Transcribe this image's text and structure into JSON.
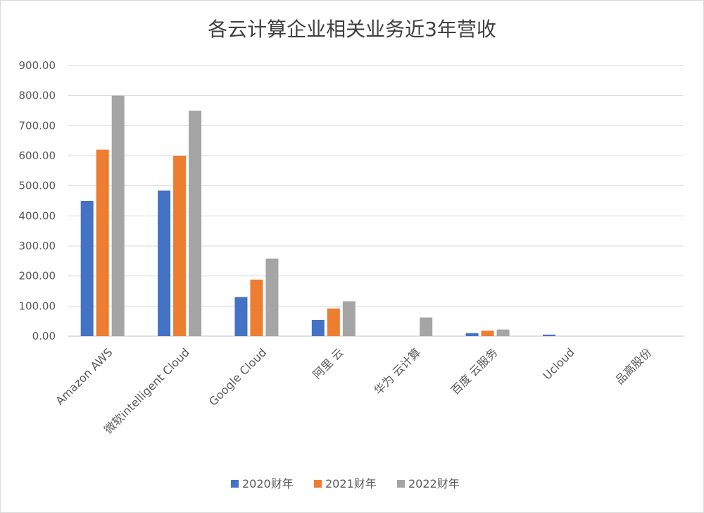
{
  "chart_data": {
    "type": "bar",
    "title": "各云计算企业相关业务近3年营收",
    "xlabel": "",
    "ylabel": "",
    "categories": [
      "Amazon AWS",
      "微软intelligent Cloud",
      "Google Cloud",
      "阿里 云",
      "华为 云计算",
      "百度 云服务",
      "Ucloud",
      "品高股份"
    ],
    "series": [
      {
        "name": "2020财年",
        "color": "#4472c4",
        "values": [
          450,
          484,
          130,
          54,
          0,
          10,
          5,
          0
        ]
      },
      {
        "name": "2021财年",
        "color": "#ed7d31",
        "values": [
          620,
          600,
          188,
          92,
          0,
          18,
          0,
          0
        ]
      },
      {
        "name": "2022财年",
        "color": "#a5a5a5",
        "values": [
          800,
          750,
          258,
          116,
          62,
          22,
          0,
          0
        ]
      }
    ],
    "ylim": [
      0,
      900
    ],
    "yticks": [
      "0.00",
      "100.00",
      "200.00",
      "300.00",
      "400.00",
      "500.00",
      "600.00",
      "700.00",
      "800.00",
      "900.00"
    ],
    "grid": true,
    "legend_position": "bottom"
  }
}
